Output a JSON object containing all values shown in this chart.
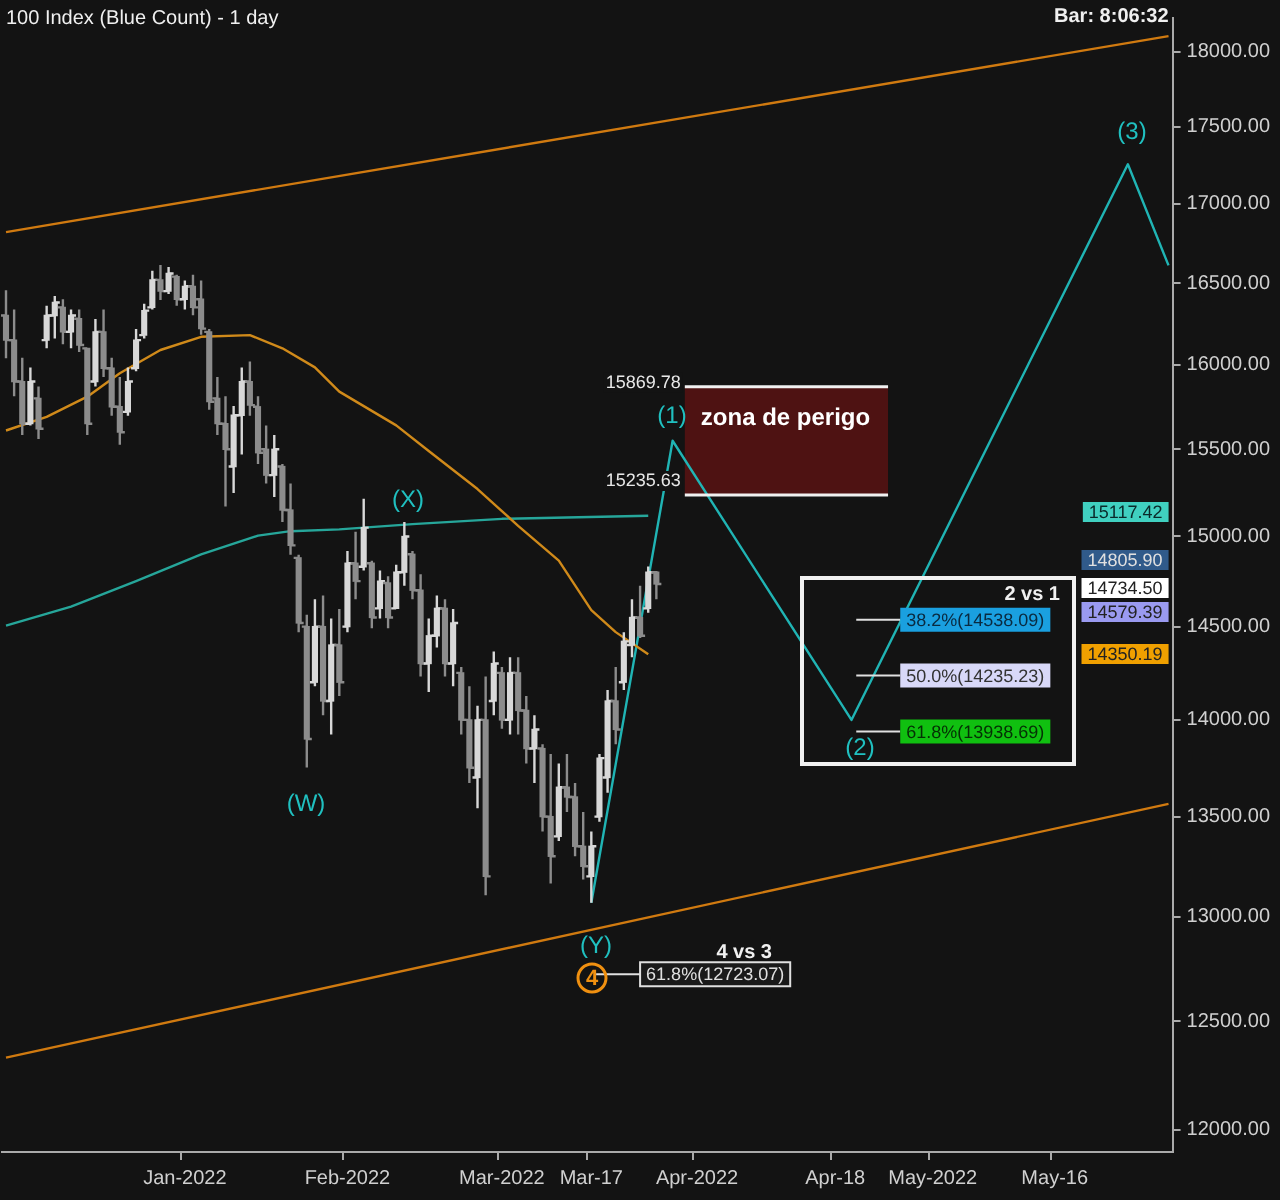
{
  "chart_data": {
    "type": "candlestick",
    "title": "100 Index (Blue Count) - 1 day",
    "log": true,
    "colors": [
      "#8c8c8c",
      "#8c8c8c",
      "#8c8c8c",
      "#d8d8d8",
      "#8c8c8c",
      "#d8d8d8",
      "#d8d8d8",
      "#8c8c8c",
      "#d8d8d8",
      "#8c8c8c",
      "#8c8c8c",
      "#d8d8d8",
      "#8c8c8c",
      "#8c8c8c",
      "#8c8c8c",
      "#d8d8d8",
      "#d8d8d8",
      "#d8d8d8",
      "#d8d8d8",
      "#8c8c8c",
      "#d8d8d8",
      "#8c8c8c",
      "#d8d8d8",
      "#8c8c8c",
      "#8c8c8c",
      "#8c8c8c",
      "#8c8c8c",
      "#8c8c8c",
      "#d8d8d8",
      "#d8d8d8",
      "#8c8c8c",
      "#8c8c8c",
      "#8c8c8c",
      "#d8d8d8",
      "#8c8c8c",
      "#8c8c8c",
      "#8c8c8c",
      "#8c8c8c",
      "#d8d8d8",
      "#8c8c8c",
      "#d8d8d8",
      "#8c8c8c",
      "#d8d8d8",
      "#8c8c8c",
      "#d8d8d8",
      "#8c8c8c",
      "#d8d8d8",
      "#8c8c8c",
      "#d8d8d8",
      "#d8d8d8",
      "#8c8c8c",
      "#8c8c8c",
      "#d8d8d8",
      "#d8d8d8",
      "#8c8c8c",
      "#d8d8d8",
      "#8c8c8c",
      "#8c8c8c",
      "#d8d8d8",
      "#8c8c8c",
      "#d8d8d8",
      "#8c8c8c",
      "#d8d8d8",
      "#8c8c8c",
      "#8c8c8c",
      "#d8d8d8",
      "#8c8c8c",
      "#8c8c8c",
      "#d8d8d8",
      "#8c8c8c",
      "#8c8c8c",
      "#8c8c8c",
      "#d8d8d8",
      "#d8d8d8",
      "#d8d8d8",
      "#8c8c8c",
      "#d8d8d8",
      "#d8d8d8",
      "#8c8c8c",
      "#d8d8d8",
      "#8c8c8c",
      null,
      null,
      null,
      null,
      null,
      null,
      null,
      null,
      null,
      null,
      null,
      null,
      null,
      null,
      null,
      null,
      null,
      null,
      null,
      null,
      null,
      null,
      null,
      null,
      null,
      null,
      null,
      null,
      null,
      null,
      null,
      null,
      null,
      null,
      null,
      null,
      null,
      null,
      null,
      null,
      null,
      null,
      null,
      null,
      null,
      null,
      null,
      null,
      null,
      null,
      null,
      null,
      null,
      null,
      null,
      null,
      null,
      null,
      null,
      null,
      null,
      null,
      null
    ],
    "categories": [
      null,
      null,
      null,
      null,
      null,
      null,
      null,
      null,
      null,
      null,
      null,
      null,
      null,
      null,
      null,
      null,
      null,
      null,
      null,
      null,
      null,
      null,
      "Jan-2022",
      null,
      null,
      null,
      null,
      null,
      null,
      null,
      null,
      null,
      null,
      null,
      null,
      null,
      null,
      null,
      null,
      null,
      null,
      null,
      "Feb-2022",
      null,
      null,
      null,
      null,
      null,
      null,
      null,
      null,
      null,
      null,
      null,
      null,
      null,
      null,
      null,
      null,
      null,
      null,
      "Mar-2022",
      null,
      null,
      null,
      null,
      null,
      null,
      null,
      null,
      null,
      null,
      "Mar-17",
      null,
      null,
      null,
      null,
      null,
      null,
      null,
      null,
      null,
      null,
      null,
      null,
      "Apr-2022",
      null,
      null,
      null,
      null,
      null,
      null,
      null,
      null,
      null,
      null,
      null,
      null,
      null,
      null,
      null,
      null,
      "Apr-18",
      null,
      null,
      null,
      null,
      null,
      null,
      null,
      null,
      null,
      null,
      null,
      "May-2022",
      null,
      null,
      null,
      null,
      null,
      null,
      null,
      null,
      null,
      null,
      null,
      null,
      null,
      null,
      "May-16",
      null,
      null,
      null,
      null,
      null,
      null,
      null,
      null,
      null,
      null,
      null,
      null,
      null,
      null
    ],
    "ohlc": [
      [
        16300,
        16456,
        16040,
        16150
      ],
      [
        16150,
        16337,
        15812,
        15900
      ],
      [
        15900,
        16043,
        15583,
        15650
      ],
      [
        15650,
        15985,
        15640,
        15900
      ],
      [
        15800,
        15870,
        15560,
        15620
      ],
      [
        16150,
        16360,
        16101,
        16300
      ],
      [
        16300,
        16420,
        16160,
        16380
      ],
      [
        16350,
        16400,
        16125,
        16200
      ],
      [
        16200,
        16337,
        16101,
        16300
      ],
      [
        16280,
        16337,
        16078,
        16120
      ],
      [
        16100,
        16101,
        15583,
        15650
      ],
      [
        15900,
        16278,
        15870,
        16200
      ],
      [
        16200,
        16337,
        15928,
        15980
      ],
      [
        15980,
        16043,
        15697,
        15750
      ],
      [
        15750,
        15928,
        15526,
        15600
      ],
      [
        15720,
        15985,
        15697,
        15900
      ],
      [
        15980,
        16218,
        15962,
        16150
      ],
      [
        16180,
        16372,
        16160,
        16330
      ],
      [
        16350,
        16576,
        16337,
        16520
      ],
      [
        16520,
        16612,
        16396,
        16450
      ],
      [
        16450,
        16600,
        16432,
        16560
      ],
      [
        16540,
        16552,
        16360,
        16400
      ],
      [
        16400,
        16516,
        16337,
        16480
      ],
      [
        16480,
        16552,
        16302,
        16350
      ],
      [
        16400,
        16516,
        16183,
        16220
      ],
      [
        16200,
        16218,
        15732,
        15780
      ],
      [
        15800,
        15928,
        15583,
        15650
      ],
      [
        15650,
        15812,
        15170,
        15500
      ],
      [
        15400,
        15755,
        15247,
        15700
      ],
      [
        15700,
        15985,
        15470,
        15900
      ],
      [
        15900,
        16020,
        15697,
        15760
      ],
      [
        15750,
        15812,
        15414,
        15480
      ],
      [
        15500,
        15640,
        15302,
        15350
      ],
      [
        15350,
        15583,
        15225,
        15500
      ],
      [
        15400,
        15414,
        15082,
        15150
      ],
      [
        15150,
        15302,
        14897,
        14950
      ],
      [
        14880,
        14897,
        14470,
        14520
      ],
      [
        14500,
        14565,
        13752,
        13900
      ],
      [
        14200,
        14650,
        14178,
        14500
      ],
      [
        14500,
        14671,
        14024,
        14100
      ],
      [
        14100,
        14544,
        13923,
        14400
      ],
      [
        14400,
        14597,
        14127,
        14200
      ],
      [
        14500,
        14918,
        14470,
        14850
      ],
      [
        14850,
        15027,
        14650,
        14750
      ],
      [
        14830,
        15214,
        14810,
        15050
      ],
      [
        14850,
        14864,
        14491,
        14550
      ],
      [
        14600,
        14810,
        14544,
        14750
      ],
      [
        14740,
        14778,
        14491,
        14550
      ],
      [
        14600,
        14842,
        14597,
        14800
      ],
      [
        14800,
        15082,
        14725,
        15000
      ],
      [
        14900,
        14918,
        14650,
        14700
      ],
      [
        14700,
        14789,
        14230,
        14300
      ],
      [
        14300,
        14544,
        14148,
        14450
      ],
      [
        14450,
        14671,
        14386,
        14600
      ],
      [
        14600,
        14650,
        14230,
        14300
      ],
      [
        14300,
        14597,
        14178,
        14520
      ],
      [
        14250,
        14282,
        13923,
        14000
      ],
      [
        14000,
        14178,
        13672,
        13750
      ],
      [
        13700,
        14075,
        13543,
        14000
      ],
      [
        14000,
        14230,
        13107,
        13200
      ],
      [
        14100,
        14365,
        14024,
        14300
      ],
      [
        14250,
        14282,
        13953,
        14000
      ],
      [
        14000,
        14334,
        13923,
        14250
      ],
      [
        14250,
        14334,
        13923,
        14050
      ],
      [
        14050,
        14127,
        13772,
        13850
      ],
      [
        13850,
        14024,
        13672,
        13950
      ],
      [
        13850,
        13872,
        13425,
        13500
      ],
      [
        13500,
        13822,
        13165,
        13300
      ],
      [
        13400,
        13772,
        13377,
        13650
      ],
      [
        13650,
        13822,
        13523,
        13600
      ],
      [
        13600,
        13672,
        13300,
        13350
      ],
      [
        13350,
        13523,
        13184,
        13250
      ],
      [
        13200,
        13425,
        13070,
        13350
      ],
      [
        13500,
        13822,
        13474,
        13800
      ],
      [
        13700,
        14158,
        13622,
        14100
      ],
      [
        14100,
        14282,
        13872,
        13950
      ],
      [
        14200,
        14470,
        14158,
        14420
      ],
      [
        14400,
        14650,
        14334,
        14550
      ],
      [
        14550,
        14725,
        14438,
        14450
      ],
      [
        14600,
        14832,
        14576,
        14800
      ],
      [
        14800,
        14805.9,
        14650,
        14734.5
      ],
      null,
      null,
      null,
      null,
      null,
      null,
      null,
      null,
      null,
      null,
      null,
      null,
      null,
      null,
      null,
      null,
      null,
      null,
      null,
      null,
      null,
      null,
      null,
      null,
      null,
      null,
      null,
      null,
      null,
      null,
      null,
      null,
      null,
      null,
      null,
      null,
      null,
      null,
      null,
      null,
      null,
      null,
      null,
      null,
      null,
      null,
      null,
      null,
      null,
      null,
      null,
      null,
      null,
      null,
      null,
      null,
      null,
      null,
      null,
      null,
      null,
      null,
      null
    ],
    "series": [
      {
        "type": "line",
        "color": "#d08a1a",
        "values": [
          15610,
          null,
          null,
          null,
          null,
          15690,
          null,
          null,
          null,
          null,
          15810,
          null,
          null,
          null,
          15950,
          null,
          null,
          null,
          null,
          16090,
          null,
          null,
          null,
          null,
          16170,
          null,
          null,
          null,
          null,
          null,
          16180,
          null,
          null,
          null,
          16100,
          null,
          null,
          null,
          15985,
          null,
          null,
          15840,
          null,
          null,
          null,
          null,
          null,
          null,
          15640,
          null,
          null,
          null,
          15490,
          null,
          null,
          null,
          null,
          null,
          15270,
          null,
          null,
          null,
          null,
          15060,
          null,
          null,
          null,
          null,
          14864,
          null,
          null,
          null,
          14590,
          null,
          null,
          14470,
          null,
          null,
          null,
          14350.19,
          null,
          null,
          null,
          null,
          null,
          null,
          null,
          null,
          null,
          null,
          null,
          null,
          null,
          null,
          null,
          null,
          null,
          null,
          null,
          null,
          null,
          null,
          null,
          null,
          null,
          null,
          null,
          null,
          null,
          null,
          null,
          null,
          null,
          null,
          null,
          null,
          null,
          null,
          null,
          null,
          null,
          null,
          null,
          null,
          null,
          null,
          null,
          null,
          null,
          null,
          null,
          null,
          null,
          null,
          null,
          null,
          null,
          null,
          null,
          null,
          null,
          null,
          null,
          null
        ]
      },
      {
        "type": "line",
        "color": "#26a69a",
        "values": [
          14505,
          null,
          null,
          null,
          null,
          null,
          null,
          null,
          14610,
          null,
          null,
          null,
          null,
          null,
          null,
          null,
          14750,
          null,
          null,
          null,
          null,
          null,
          null,
          null,
          14900,
          null,
          null,
          null,
          null,
          null,
          null,
          15005,
          null,
          null,
          null,
          15030,
          null,
          null,
          null,
          null,
          null,
          15040,
          null,
          null,
          null,
          null,
          null,
          null,
          null,
          null,
          15070,
          null,
          null,
          null,
          null,
          null,
          null,
          null,
          null,
          null,
          null,
          15100,
          null,
          null,
          null,
          null,
          null,
          null,
          null,
          null,
          null,
          null,
          null,
          null,
          null,
          null,
          null,
          null,
          null,
          15117.42,
          null,
          null,
          null,
          null,
          null,
          null,
          null,
          null,
          null,
          null,
          null,
          null,
          null,
          null,
          null,
          null,
          null,
          null,
          null,
          null,
          null,
          null,
          null,
          null,
          null,
          null,
          null,
          null,
          null,
          null,
          null,
          null,
          null,
          null,
          null,
          null,
          null,
          null,
          null,
          null,
          null,
          null,
          null,
          null,
          null,
          null,
          null,
          null,
          null,
          null,
          null,
          null,
          null,
          null,
          null,
          null,
          null,
          null,
          null,
          null,
          null,
          null,
          null,
          null
        ]
      },
      {
        "type": "line",
        "color": "#d07a10",
        "values": [
          16819,
          null,
          null,
          null,
          null,
          null,
          null,
          null,
          null,
          null,
          null,
          null,
          null,
          null,
          null,
          null,
          null,
          null,
          null,
          null,
          null,
          null,
          null,
          null,
          null,
          null,
          null,
          null,
          null,
          null,
          null,
          null,
          null,
          null,
          null,
          null,
          null,
          null,
          null,
          null,
          null,
          null,
          null,
          null,
          null,
          null,
          null,
          null,
          null,
          null,
          null,
          null,
          null,
          null,
          null,
          null,
          null,
          null,
          null,
          null,
          null,
          null,
          null,
          null,
          null,
          null,
          null,
          null,
          null,
          null,
          null,
          null,
          null,
          null,
          null,
          null,
          null,
          null,
          null,
          null,
          null,
          null,
          null,
          null,
          null,
          null,
          null,
          null,
          null,
          null,
          null,
          null,
          null,
          null,
          null,
          null,
          null,
          null,
          null,
          null,
          null,
          null,
          null,
          null,
          null,
          null,
          null,
          null,
          null,
          null,
          null,
          null,
          null,
          null,
          null,
          null,
          null,
          null,
          null,
          null,
          null,
          null,
          null,
          null,
          null,
          null,
          null,
          null,
          null,
          null,
          null,
          null,
          null,
          null,
          null,
          null,
          null,
          null,
          null,
          null,
          null,
          null,
          null,
          18106
        ]
      },
      {
        "type": "line",
        "color": "#d07a10",
        "values": [
          12330,
          null,
          null,
          null,
          null,
          null,
          null,
          null,
          null,
          null,
          null,
          null,
          null,
          null,
          null,
          null,
          null,
          null,
          null,
          null,
          null,
          null,
          null,
          null,
          null,
          null,
          null,
          null,
          null,
          null,
          null,
          null,
          null,
          null,
          null,
          null,
          null,
          null,
          null,
          null,
          null,
          null,
          null,
          null,
          null,
          null,
          null,
          null,
          null,
          null,
          null,
          null,
          null,
          null,
          null,
          null,
          null,
          null,
          null,
          null,
          null,
          null,
          null,
          null,
          null,
          null,
          null,
          null,
          null,
          null,
          null,
          null,
          null,
          null,
          null,
          null,
          null,
          null,
          null,
          null,
          null,
          null,
          null,
          null,
          null,
          null,
          null,
          null,
          null,
          null,
          null,
          null,
          null,
          null,
          null,
          null,
          null,
          null,
          null,
          null,
          null,
          null,
          null,
          null,
          null,
          null,
          null,
          null,
          null,
          null,
          null,
          null,
          null,
          null,
          null,
          null,
          null,
          null,
          null,
          null,
          null,
          null,
          null,
          null,
          null,
          null,
          null,
          null,
          null,
          null,
          null,
          null,
          null,
          null,
          null,
          null,
          null,
          null,
          null,
          null,
          null,
          null,
          null,
          13565
        ]
      },
      {
        "type": "line",
        "color": "#20b4b4",
        "values": [
          null,
          null,
          null,
          null,
          null,
          null,
          null,
          null,
          null,
          null,
          null,
          null,
          null,
          null,
          null,
          null,
          null,
          null,
          null,
          null,
          null,
          null,
          null,
          null,
          null,
          null,
          null,
          null,
          null,
          null,
          null,
          null,
          null,
          null,
          null,
          null,
          null,
          null,
          null,
          null,
          null,
          null,
          null,
          null,
          null,
          null,
          null,
          null,
          null,
          null,
          null,
          null,
          null,
          null,
          null,
          null,
          null,
          null,
          null,
          null,
          null,
          null,
          null,
          null,
          null,
          null,
          null,
          null,
          null,
          null,
          null,
          null,
          13070,
          null,
          null,
          null,
          null,
          null,
          null,
          null,
          null,
          null,
          15550,
          null,
          null,
          null,
          null,
          null,
          null,
          null,
          null,
          null,
          null,
          null,
          null,
          null,
          null,
          null,
          null,
          null,
          null,
          null,
          null,
          null,
          14000,
          null,
          null,
          null,
          null,
          null,
          null,
          null,
          null,
          null,
          null,
          null,
          null,
          null,
          null,
          null,
          null,
          null,
          null,
          null,
          null,
          null,
          null,
          null,
          null,
          null,
          null,
          null,
          null,
          null,
          null,
          null,
          null,
          null,
          17254,
          null,
          null,
          null,
          null,
          16610
        ]
      }
    ],
    "bands": [
      {
        "axis": "y",
        "from": 15235.63,
        "to": 15869.78,
        "label": "zona de perigo",
        "color": "#4e1212"
      }
    ],
    "ref_lines": [
      {
        "axis": "y",
        "value": 15869.78,
        "label": "15869.78",
        "color": "#f0f0f0"
      },
      {
        "axis": "y",
        "value": 15235.63,
        "label": "15235.63",
        "color": "#f0f0f0"
      },
      {
        "axis": "y",
        "value": 14538.09,
        "label": "38.2%(14538.09)",
        "color": "#e0e0e0"
      },
      {
        "axis": "y",
        "value": 14235.23,
        "label": "50.0%(14235.23)",
        "color": "#e0e0e0"
      },
      {
        "axis": "y",
        "value": 13938.69,
        "label": "61.8%(13938.69)",
        "color": "#e0e0e0"
      },
      {
        "axis": "y",
        "value": 12723.07,
        "label": "61.8%(12723.07)",
        "color": "#e0e0e0"
      }
    ],
    "annotations": [
      "(W)",
      "(X)",
      "(Y)",
      "4",
      "(1)",
      "(2)",
      "(3)",
      "2 vs 1",
      "4 vs 3",
      "Bar: 8:06:32",
      "15117.42",
      "14805.90",
      "14734.50",
      "14579.39",
      "14350.19"
    ],
    "ylim": [
      11900,
      18230
    ],
    "yticks": [
      {
        "value": 12000,
        "label": "12000.00"
      },
      {
        "value": 12500,
        "label": "12500.00"
      },
      {
        "value": 13000,
        "label": "13000.00"
      },
      {
        "value": 13500,
        "label": "13500.00"
      },
      {
        "value": 14000,
        "label": "14000.00"
      },
      {
        "value": 14500,
        "label": "14500.00"
      },
      {
        "value": 15000,
        "label": "15000.00"
      },
      {
        "value": 15500,
        "label": "15500.00"
      },
      {
        "value": 16000,
        "label": "16000.00"
      },
      {
        "value": 16500,
        "label": "16500.00"
      },
      {
        "value": 17000,
        "label": "17000.00"
      },
      {
        "value": 17500,
        "label": "17500.00"
      },
      {
        "value": 18000,
        "label": "18000.00"
      }
    ]
  }
}
